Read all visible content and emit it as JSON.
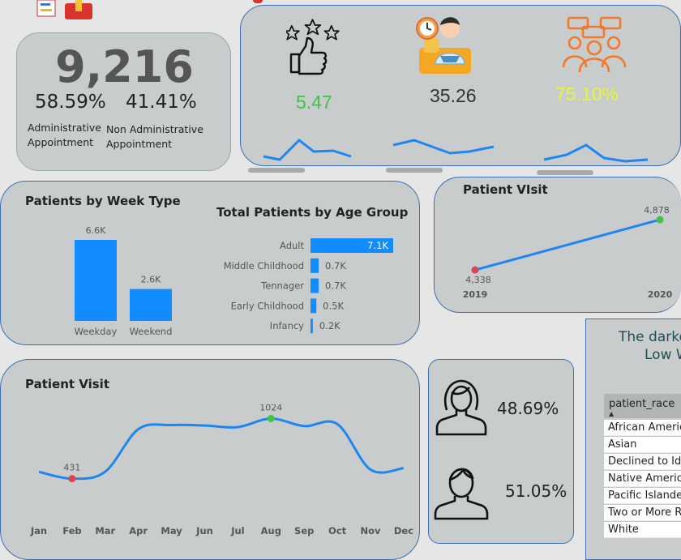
{
  "kpi": {
    "total": "9,216",
    "admin_pct": "58.59%",
    "non_admin_pct": "41.41%",
    "admin_label_1": "Administrative",
    "admin_label_2": "Appointment",
    "non_admin_label_1": "Non Administrative",
    "non_admin_label_2": "Appointment"
  },
  "metrics": {
    "satisfaction": "5.47",
    "wait_time": "35.26",
    "referral": "75.10%",
    "colors": {
      "satisfaction": "#3ec24a",
      "wait_time": "#333333",
      "referral": "#e6f43a"
    }
  },
  "week_type": {
    "title": "Patients by Week Type",
    "chart_data": {
      "type": "bar",
      "categories": [
        "Weekday",
        "Weekend"
      ],
      "values": [
        6.6,
        2.6
      ],
      "value_labels": [
        "6.6K",
        "2.6K"
      ]
    }
  },
  "age_group": {
    "title": "Total Patients by Age Group",
    "chart_data": {
      "type": "bar",
      "categories": [
        "Adult",
        "Middle Childhood",
        "Tennager",
        "Early Childhood",
        "Infancy"
      ],
      "values": [
        7.1,
        0.7,
        0.7,
        0.5,
        0.2
      ],
      "value_labels": [
        "7.1K",
        "0.7K",
        "0.7K",
        "0.5K",
        "0.2K"
      ]
    }
  },
  "patient_visit_year": {
    "title": "Patient VIsit",
    "chart_data": {
      "type": "line",
      "x": [
        "2019",
        "2020"
      ],
      "values": [
        4338,
        4878
      ],
      "value_labels": [
        "4,338",
        "4,878"
      ]
    }
  },
  "patient_visit_month": {
    "title": "Patient Visit",
    "chart_data": {
      "type": "line",
      "x": [
        "Jan",
        "Feb",
        "Mar",
        "Apr",
        "May",
        "Jun",
        "Jul",
        "Aug",
        "Sep",
        "Oct",
        "Nov",
        "Dec"
      ],
      "values": [
        498,
        431,
        500,
        920,
        960,
        955,
        940,
        1024,
        950,
        970,
        520,
        535
      ],
      "min_label": "431",
      "max_label": "1024"
    }
  },
  "gender": {
    "female_pct": "48.69%",
    "male_pct": "51.05%"
  },
  "race_table": {
    "title_line1": "The darke",
    "title_line2": "Low W",
    "header": "patient_race",
    "rows": [
      "African Americ",
      "Asian",
      "Declined to Ide",
      "Native America",
      "Pacific Islander",
      "Two or More R",
      "White"
    ]
  }
}
